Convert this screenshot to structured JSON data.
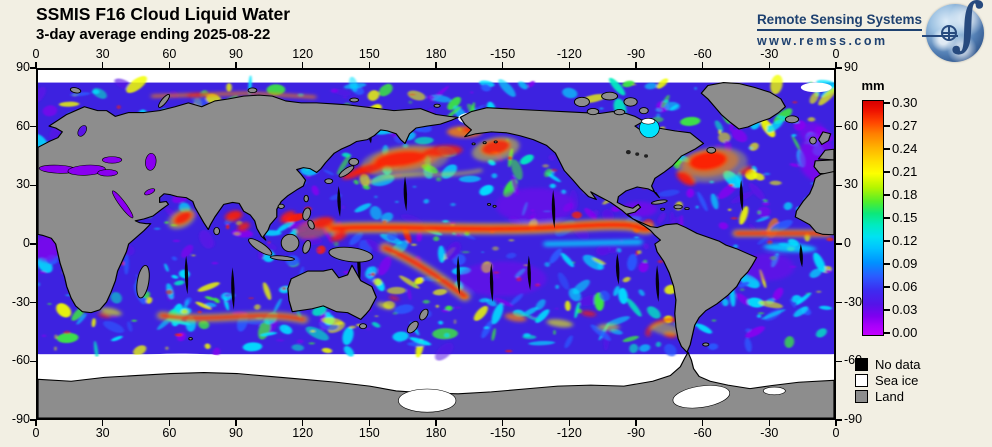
{
  "page": {
    "background": "#F2EFE3"
  },
  "logo": {
    "name": "Remote Sensing Systems",
    "url": "www.remss.com"
  },
  "chart_data": {
    "type": "heatmap",
    "title": "SSMIS F16 Cloud Liquid Water",
    "subtitle": "3-day average ending 2025-08-22",
    "projection": "global equirectangular, longitude 0 to 360E left-to-right, latitude 90N top to 90S bottom",
    "x_axis": {
      "tick_labels": [
        "0",
        "30",
        "60",
        "90",
        "120",
        "150",
        "180",
        "-150",
        "-120",
        "-90",
        "-60",
        "-30",
        "0"
      ]
    },
    "y_axis": {
      "tick_labels": [
        "90",
        "60",
        "30",
        "0",
        "-30",
        "-60",
        "-90"
      ]
    },
    "colorbar": {
      "units": "mm",
      "min": 0.0,
      "max": 0.3,
      "tick_labels": [
        "0.30",
        "0.27",
        "0.24",
        "0.21",
        "0.18",
        "0.15",
        "0.12",
        "0.09",
        "0.06",
        "0.03",
        "0.00"
      ],
      "gradient_stops": [
        [
          "#D60000",
          0
        ],
        [
          "#EE1100",
          4
        ],
        [
          "#FF4400",
          9
        ],
        [
          "#FF7F00",
          14
        ],
        [
          "#FFB300",
          20
        ],
        [
          "#FFE000",
          26
        ],
        [
          "#FDFF00",
          31
        ],
        [
          "#B4F500",
          37
        ],
        [
          "#52EE2A",
          43
        ],
        [
          "#0CE87A",
          48
        ],
        [
          "#00EBC0",
          53
        ],
        [
          "#00E2F2",
          58
        ],
        [
          "#00C2FF",
          63
        ],
        [
          "#0092FF",
          69
        ],
        [
          "#2B5BFF",
          75
        ],
        [
          "#3D2BF0",
          81
        ],
        [
          "#5513E8",
          87
        ],
        [
          "#7F00F0",
          92
        ],
        [
          "#A800FA",
          96
        ],
        [
          "#C400FF",
          100
        ]
      ]
    },
    "legend": [
      {
        "label": "No data",
        "color": "#000000"
      },
      {
        "label": "Sea ice",
        "color": "#FFFFFF"
      },
      {
        "label": "Land",
        "color": "#8D8D8D"
      }
    ],
    "map_palette": {
      "ocean_base": "#3D22E0",
      "cyan": "#00E4FF",
      "blue": "#2A5BFF",
      "teal": "#00F0C0",
      "green": "#3CEE3C",
      "yellow": "#F2FF00",
      "orange": "#FF8800",
      "red": "#FF1E00",
      "purple": "#8A00F0",
      "violet": "#5A14E6",
      "land": "#8D8D8D",
      "sea_ice": "#FFFFFF",
      "no_data": "#000000",
      "coastline": "#000000"
    },
    "visible_features": [
      "bright red ITCZ band across the tropical Pacific near 5-10N",
      "red SPCZ band running southeast from New Guinea",
      "red storm systems in the Gulf of Alaska and central North Pacific",
      "large red Gulf Stream / North Atlantic storm region south of Greenland",
      "red monsoon cloud water in the Arabian Sea, Bay of Bengal and South China Sea",
      "red Southern Ocean storm band across the south Indian Ocean near 40S",
      "thin black diagonal swath gaps (no data) between satellite passes",
      "white sea-ice ring around Antarctica and in the Arctic",
      "gray land with black coastlines; inland seas show purple low values"
    ]
  }
}
